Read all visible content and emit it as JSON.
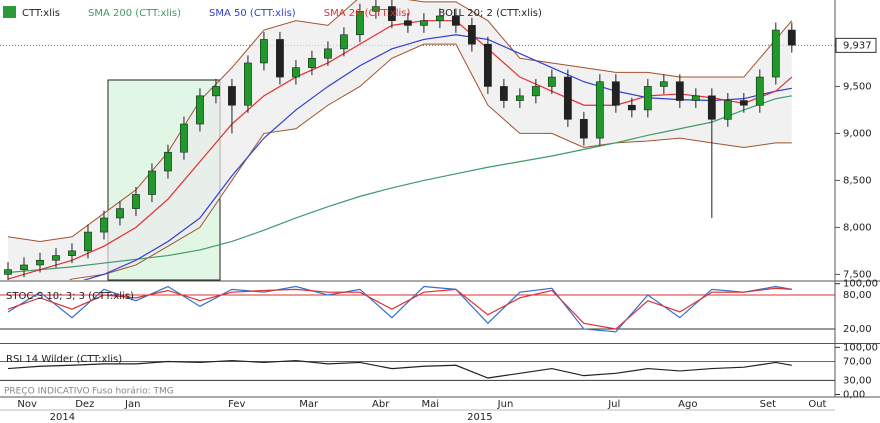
{
  "chart_data": [
    {
      "type": "candlestick",
      "name": "CTT:xlis",
      "xlim": [
        -0.5,
        51.7
      ],
      "xticks": [
        {
          "value": 1.2,
          "label": "Nov"
        },
        {
          "value": 4.8,
          "label": "Dez"
        },
        {
          "value": 7.8,
          "label": "Jan"
        },
        {
          "value": 14.3,
          "label": "Fev"
        },
        {
          "value": 18.8,
          "label": "Mar"
        },
        {
          "value": 23.3,
          "label": "Abr"
        },
        {
          "value": 26.4,
          "label": "Mai"
        },
        {
          "value": 31.1,
          "label": "Jun"
        },
        {
          "value": 37.9,
          "label": "Jul"
        },
        {
          "value": 42.5,
          "label": "Ago"
        },
        {
          "value": 47.5,
          "label": "Set"
        },
        {
          "value": 50.6,
          "label": "Out"
        }
      ],
      "year_ticks": [
        {
          "value": 3.4,
          "label": "2014"
        },
        {
          "value": 29.5,
          "label": "2015"
        }
      ],
      "ylim": [
        7.44,
        10.42
      ],
      "yticks": [
        {
          "value": 7.5,
          "label": "7,500"
        },
        {
          "value": 8,
          "label": "8,000"
        },
        {
          "value": 8.5,
          "label": "8,500"
        },
        {
          "value": 9,
          "label": "9,000"
        },
        {
          "value": 9.5,
          "label": "9,500"
        }
      ],
      "last_price": {
        "value": 9.937,
        "label": "9,937"
      },
      "up_color": "#1f9a2a",
      "down_color": "#222222",
      "open": [
        7.5,
        7.55,
        7.6,
        7.65,
        7.7,
        7.75,
        7.95,
        8.1,
        8.2,
        8.35,
        8.6,
        8.8,
        9.1,
        9.4,
        9.5,
        9.3,
        9.75,
        10.0,
        9.6,
        9.7,
        9.8,
        9.9,
        10.05,
        10.3,
        10.35,
        10.2,
        10.15,
        10.2,
        10.25,
        10.15,
        9.95,
        9.5,
        9.35,
        9.4,
        9.5,
        9.6,
        9.15,
        8.95,
        9.55,
        9.3,
        9.25,
        9.5,
        9.55,
        9.35,
        9.4,
        9.15,
        9.35,
        9.3,
        9.6,
        10.1
      ],
      "high": [
        7.63,
        7.68,
        7.73,
        7.78,
        7.83,
        8.03,
        8.18,
        8.28,
        8.43,
        8.68,
        8.88,
        9.18,
        9.48,
        9.58,
        9.58,
        9.83,
        10.08,
        10.08,
        9.78,
        9.88,
        9.98,
        10.13,
        10.38,
        10.43,
        10.43,
        10.28,
        10.28,
        10.33,
        10.33,
        10.23,
        10.03,
        9.58,
        9.48,
        9.58,
        9.68,
        9.68,
        9.23,
        9.63,
        9.63,
        9.38,
        9.58,
        9.63,
        9.63,
        9.48,
        9.48,
        9.43,
        9.43,
        9.68,
        10.18,
        10.18
      ],
      "low": [
        7.42,
        7.47,
        7.52,
        7.57,
        7.62,
        7.67,
        7.87,
        8.02,
        8.12,
        8.27,
        8.52,
        8.72,
        9.02,
        9.32,
        9.0,
        9.22,
        9.67,
        9.52,
        9.52,
        9.62,
        9.72,
        9.82,
        9.97,
        10.22,
        10.12,
        10.07,
        10.07,
        10.12,
        10.07,
        9.87,
        9.42,
        9.27,
        9.27,
        9.32,
        9.42,
        9.07,
        8.87,
        8.87,
        9.22,
        9.17,
        9.17,
        9.42,
        9.27,
        9.27,
        8.1,
        9.07,
        9.22,
        9.22,
        9.52,
        9.86
      ],
      "close": [
        7.55,
        7.6,
        7.65,
        7.7,
        7.75,
        7.95,
        8.1,
        8.2,
        8.35,
        8.6,
        8.8,
        9.1,
        9.4,
        9.5,
        9.3,
        9.75,
        10.0,
        9.6,
        9.7,
        9.8,
        9.9,
        10.05,
        10.3,
        10.35,
        10.2,
        10.15,
        10.2,
        10.25,
        10.15,
        9.95,
        9.5,
        9.35,
        9.4,
        9.5,
        9.6,
        9.15,
        8.95,
        9.55,
        9.3,
        9.25,
        9.5,
        9.55,
        9.35,
        9.4,
        9.15,
        9.35,
        9.3,
        9.6,
        10.1,
        9.94
      ],
      "overlay_x": [
        0,
        2,
        4,
        6,
        8,
        10,
        12,
        14,
        16,
        18,
        20,
        22,
        24,
        26,
        28,
        30,
        32,
        34,
        36,
        38,
        40,
        42,
        44,
        46,
        48,
        49
      ],
      "overlays": [
        {
          "name": "SMA 200 (CTT:xlis)",
          "color": "#3f9a6a",
          "values": [
            7.52,
            7.55,
            7.58,
            7.62,
            7.66,
            7.7,
            7.76,
            7.85,
            7.97,
            8.1,
            8.22,
            8.33,
            8.42,
            8.5,
            8.57,
            8.64,
            8.7,
            8.76,
            8.83,
            8.9,
            8.98,
            9.05,
            9.12,
            9.25,
            9.37,
            9.4
          ]
        },
        {
          "name": "SMA 50 (CTT:xlis)",
          "color": "#2f3fd0",
          "values": [
            7.2,
            7.3,
            7.4,
            7.5,
            7.65,
            7.85,
            8.1,
            8.55,
            8.95,
            9.25,
            9.5,
            9.72,
            9.9,
            10.0,
            10.05,
            10.0,
            9.85,
            9.7,
            9.55,
            9.45,
            9.38,
            9.36,
            9.35,
            9.37,
            9.45,
            9.48
          ]
        },
        {
          "name": "SMA 20 (CTT:xlis)",
          "color": "#e03030",
          "values": [
            7.45,
            7.55,
            7.65,
            7.8,
            8.0,
            8.3,
            8.7,
            9.1,
            9.4,
            9.6,
            9.75,
            9.95,
            10.15,
            10.2,
            10.2,
            9.9,
            9.6,
            9.45,
            9.3,
            9.3,
            9.4,
            9.42,
            9.38,
            9.32,
            9.45,
            9.6
          ]
        }
      ],
      "bands": {
        "name": "BOLL 20; 2 (CTT:xlis)",
        "color": "#a0522d",
        "upper": [
          7.9,
          7.85,
          7.9,
          8.15,
          8.4,
          8.8,
          9.35,
          9.7,
          10.1,
          10.2,
          10.15,
          10.45,
          10.45,
          10.4,
          10.4,
          10.2,
          9.8,
          9.75,
          9.7,
          9.65,
          9.65,
          9.6,
          9.6,
          9.6,
          10.0,
          10.2
        ],
        "lower": [
          7.3,
          7.3,
          7.45,
          7.5,
          7.6,
          7.8,
          8.0,
          8.5,
          9.0,
          9.05,
          9.3,
          9.5,
          9.8,
          9.95,
          9.95,
          9.3,
          9.0,
          9.0,
          8.85,
          8.9,
          8.92,
          8.95,
          8.9,
          8.85,
          8.9,
          8.9
        ]
      },
      "footer": [
        "PREÇO INDICATIVO",
        "Fuso horário: TMG"
      ]
    },
    {
      "type": "line",
      "name": "STOC-S 10; 3; 3 (CTT:xlis)",
      "ylim": [
        -3,
        103
      ],
      "yticks": [
        {
          "value": 100,
          "label": "100,00"
        },
        {
          "value": 80,
          "label": "80,00"
        },
        {
          "value": 20,
          "label": "20,00"
        }
      ],
      "x": [
        0,
        2,
        4,
        6,
        8,
        10,
        12,
        14,
        16,
        18,
        20,
        22,
        24,
        26,
        28,
        30,
        32,
        34,
        36,
        38,
        40,
        42,
        44,
        46,
        48,
        49
      ],
      "series": [
        {
          "color": "#2f6fd0",
          "values": [
            50,
            85,
            40,
            90,
            70,
            95,
            60,
            90,
            85,
            95,
            80,
            90,
            40,
            95,
            90,
            30,
            85,
            92,
            20,
            15,
            80,
            40,
            90,
            85,
            95,
            90
          ]
        },
        {
          "color": "#e03030",
          "values": [
            55,
            75,
            55,
            80,
            75,
            88,
            70,
            85,
            88,
            90,
            85,
            85,
            55,
            85,
            90,
            45,
            75,
            88,
            30,
            20,
            70,
            50,
            85,
            85,
            92,
            90
          ]
        }
      ]
    },
    {
      "type": "line",
      "name": "RSI 14 Wilder (CTT:xlis)",
      "ylim": [
        -1,
        105
      ],
      "yticks": [
        {
          "value": 100,
          "label": "100,00"
        },
        {
          "value": 70,
          "label": "70,00"
        },
        {
          "value": 30,
          "label": "30,00"
        },
        {
          "value": 0,
          "label": "0,00"
        }
      ],
      "x": [
        0,
        2,
        4,
        6,
        8,
        10,
        12,
        14,
        16,
        18,
        20,
        22,
        24,
        26,
        28,
        30,
        32,
        34,
        36,
        38,
        40,
        42,
        44,
        46,
        48,
        49
      ],
      "series": [
        {
          "color": "#222222",
          "values": [
            55,
            60,
            62,
            65,
            65,
            70,
            68,
            72,
            68,
            72,
            65,
            68,
            55,
            60,
            62,
            35,
            45,
            55,
            40,
            45,
            55,
            50,
            55,
            58,
            68,
            62
          ]
        }
      ]
    }
  ]
}
